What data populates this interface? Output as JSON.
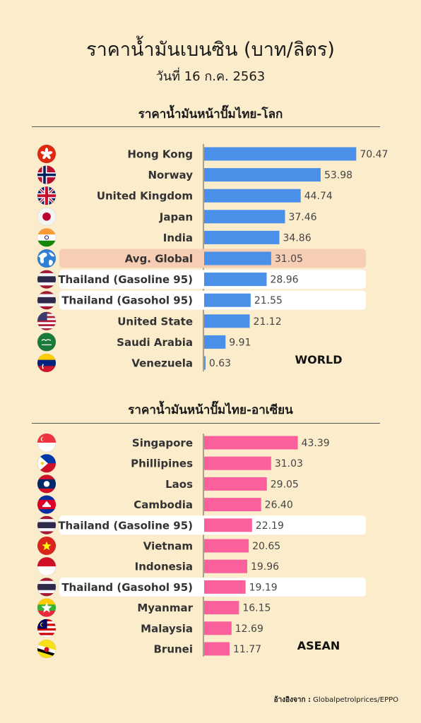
{
  "header": {
    "title": "ราคาน้ำมันเบนซิน (บาท/ลิตร)",
    "subtitle": "วันที่ 16 ก.ค. 2563"
  },
  "source": {
    "label": "อ้างอิงจาก :",
    "text": "Globalpetrolprices/EPPO"
  },
  "chart_data": [
    {
      "type": "bar",
      "orientation": "horizontal",
      "title": "ราคาน้ำมันหน้าปั๊มไทย-โลก",
      "region_label": "WORLD",
      "bar_color": "#4a90e8",
      "highlight_colors": {
        "global": "#f7cdb3",
        "thailand": "#ffffff"
      },
      "xlim": [
        0,
        72
      ],
      "categories": [
        "Hong Kong",
        "Norway",
        "United Kingdom",
        "Japan",
        "India",
        "Avg. Global",
        "Thailand (Gasoline 95)",
        "Thailand (Gasohol 95)",
        "United State",
        "Saudi Arabia",
        "Venezuela"
      ],
      "values": [
        70.47,
        53.98,
        44.74,
        37.46,
        34.86,
        31.05,
        28.96,
        21.55,
        21.12,
        9.91,
        0.63
      ],
      "value_labels": [
        "70.47",
        "53.98",
        "44.74",
        "37.46",
        "34.86",
        "31.05",
        "28.96",
        "21.55",
        "21.12",
        "9.91",
        "0.63"
      ],
      "highlights": [
        "",
        "",
        "",
        "",
        "",
        "global",
        "thailand",
        "thailand",
        "",
        "",
        ""
      ],
      "icons": [
        "hong-kong-flag-icon",
        "norway-flag-icon",
        "united-kingdom-flag-icon",
        "japan-flag-icon",
        "india-flag-icon",
        "globe-icon",
        "thailand-flag-icon",
        "thailand-flag-icon",
        "united-states-flag-icon",
        "saudi-arabia-flag-icon",
        "venezuela-flag-icon"
      ]
    },
    {
      "type": "bar",
      "orientation": "horizontal",
      "title": "ราคาน้ำมันหน้าปั๊มไทย-อาเซียน",
      "region_label": "ASEAN",
      "bar_color": "#fb5f9c",
      "highlight_colors": {
        "thailand": "#ffffff"
      },
      "xlim": [
        0,
        72
      ],
      "categories": [
        "Singapore",
        "Phillipines",
        "Laos",
        "Cambodia",
        "Thailand (Gasoline 95)",
        "Vietnam",
        "Indonesia",
        "Thailand (Gasohol 95)",
        "Myanmar",
        "Malaysia",
        "Brunei"
      ],
      "values": [
        43.39,
        31.03,
        29.05,
        26.4,
        22.19,
        20.65,
        19.96,
        19.19,
        16.15,
        12.69,
        11.77
      ],
      "value_labels": [
        "43.39",
        "31.03",
        "29.05",
        "26.40",
        "22.19",
        "20.65",
        "19.96",
        "19.19",
        "16.15",
        "12.69",
        "11.77"
      ],
      "highlights": [
        "",
        "",
        "",
        "",
        "thailand",
        "",
        "",
        "thailand",
        "",
        "",
        ""
      ],
      "icons": [
        "singapore-flag-icon",
        "philippines-flag-icon",
        "laos-flag-icon",
        "cambodia-flag-icon",
        "thailand-flag-icon",
        "vietnam-flag-icon",
        "indonesia-flag-icon",
        "thailand-flag-icon",
        "myanmar-flag-icon",
        "malaysia-flag-icon",
        "brunei-flag-icon"
      ]
    }
  ]
}
